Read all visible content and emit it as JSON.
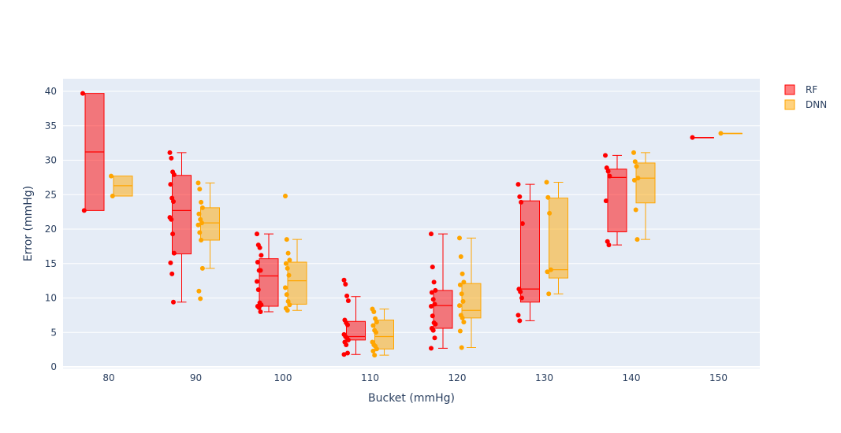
{
  "chart_data": {
    "type": "box",
    "title": "",
    "xlabel": "Bucket (mmHg)",
    "ylabel": "Error (mmHg)",
    "categories": [
      "80",
      "90",
      "100",
      "110",
      "120",
      "130",
      "140",
      "150"
    ],
    "ylim": [
      0,
      41
    ],
    "yticks": [
      0,
      5,
      10,
      15,
      20,
      25,
      30,
      35,
      40
    ],
    "grid": true,
    "legend_position": "top-right",
    "colors": {
      "RF": "#ff0000",
      "DNN": "#ffa500",
      "plot_bg": "#e5ecf6"
    },
    "series": [
      {
        "name": "RF",
        "boxes": [
          {
            "category": "80",
            "min": 22.7,
            "q1": 22.7,
            "median": 31.2,
            "q3": 39.7,
            "max": 39.7,
            "points": [
              39.7,
              22.7
            ]
          },
          {
            "category": "90",
            "min": 9.4,
            "q1": 16.4,
            "median": 22.7,
            "q3": 27.8,
            "max": 31.1,
            "points": [
              31.1,
              30.3,
              28.3,
              27.9,
              26.5,
              24.5,
              24.0,
              21.7,
              21.4,
              19.3,
              16.5,
              15.1,
              13.5,
              9.4
            ]
          },
          {
            "category": "100",
            "min": 8.0,
            "q1": 8.8,
            "median": 13.2,
            "q3": 15.7,
            "max": 19.3,
            "points": [
              19.3,
              17.7,
              17.3,
              16.2,
              15.2,
              14.0,
              14.0,
              12.4,
              11.2,
              9.3,
              9.0,
              8.8,
              8.6,
              8.0
            ]
          },
          {
            "category": "110",
            "min": 1.8,
            "q1": 3.9,
            "median": 4.4,
            "q3": 6.6,
            "max": 10.2,
            "points": [
              12.6,
              12.0,
              10.3,
              9.6,
              6.8,
              6.4,
              6.1,
              4.7,
              4.4,
              4.2,
              3.9,
              3.6,
              3.2,
              2.0,
              1.8
            ]
          },
          {
            "category": "120",
            "min": 2.7,
            "q1": 5.6,
            "median": 8.9,
            "q3": 11.1,
            "max": 19.3,
            "points": [
              19.3,
              14.5,
              12.3,
              11.1,
              10.8,
              9.8,
              9.1,
              8.8,
              7.4,
              6.4,
              6.2,
              5.6,
              5.3,
              4.2,
              2.7
            ]
          },
          {
            "category": "130",
            "min": 6.7,
            "q1": 9.4,
            "median": 11.3,
            "q3": 24.1,
            "max": 26.5,
            "points": [
              26.5,
              24.7,
              23.9,
              20.8,
              11.3,
              10.9,
              10.0,
              7.5,
              6.7
            ]
          },
          {
            "category": "140",
            "min": 17.7,
            "q1": 19.6,
            "median": 27.5,
            "q3": 28.7,
            "max": 30.7,
            "points": [
              30.7,
              28.9,
              28.4,
              27.7,
              24.1,
              18.2,
              17.7
            ]
          },
          {
            "category": "150",
            "min": 33.3,
            "q1": 33.3,
            "median": 33.3,
            "q3": 33.3,
            "max": 33.3,
            "points": [
              33.3
            ]
          }
        ]
      },
      {
        "name": "DNN",
        "boxes": [
          {
            "category": "80",
            "min": 24.8,
            "q1": 24.8,
            "median": 26.3,
            "q3": 27.7,
            "max": 27.7,
            "points": [
              27.7,
              24.8
            ]
          },
          {
            "category": "90",
            "min": 14.3,
            "q1": 18.4,
            "median": 20.9,
            "q3": 23.1,
            "max": 26.7,
            "points": [
              26.7,
              25.8,
              23.9,
              23.1,
              22.2,
              21.4,
              20.9,
              20.6,
              19.5,
              18.4,
              14.3,
              11.0,
              9.9
            ]
          },
          {
            "category": "100",
            "min": 8.2,
            "q1": 9.1,
            "median": 12.5,
            "q3": 15.2,
            "max": 18.5,
            "points": [
              24.8,
              18.5,
              16.5,
              15.5,
              15.0,
              14.3,
              13.3,
              11.5,
              10.5,
              9.5,
              9.0,
              8.5,
              8.2
            ]
          },
          {
            "category": "110",
            "min": 1.7,
            "q1": 2.6,
            "median": 4.4,
            "q3": 6.8,
            "max": 8.4,
            "points": [
              8.4,
              8.0,
              7.0,
              6.5,
              6.0,
              5.3,
              5.0,
              3.6,
              3.2,
              3.0,
              2.6,
              2.3,
              1.7
            ]
          },
          {
            "category": "120",
            "min": 2.8,
            "q1": 7.1,
            "median": 8.2,
            "q3": 12.1,
            "max": 18.7,
            "points": [
              18.7,
              16.0,
              13.5,
              12.3,
              11.9,
              10.6,
              9.5,
              8.9,
              7.5,
              7.1,
              6.5,
              5.2,
              2.8
            ]
          },
          {
            "category": "130",
            "min": 10.6,
            "q1": 12.9,
            "median": 14.1,
            "q3": 24.5,
            "max": 26.8,
            "points": [
              26.8,
              24.6,
              22.3,
              14.1,
              13.8,
              10.6
            ]
          },
          {
            "category": "140",
            "min": 18.5,
            "q1": 23.8,
            "median": 27.4,
            "q3": 29.6,
            "max": 31.1,
            "points": [
              31.1,
              29.8,
              29.1,
              27.4,
              27.1,
              22.8,
              18.5
            ]
          },
          {
            "category": "150",
            "min": 33.9,
            "q1": 33.9,
            "median": 33.9,
            "q3": 33.9,
            "max": 33.9,
            "points": [
              33.9
            ]
          }
        ]
      }
    ]
  }
}
